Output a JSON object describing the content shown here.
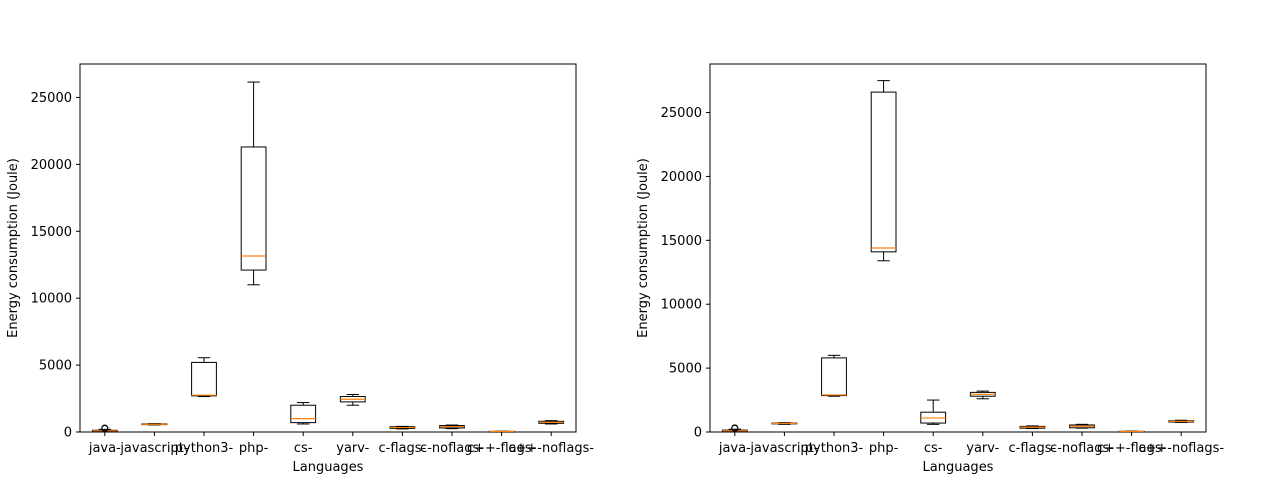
{
  "chart_data": [
    {
      "type": "box",
      "xlabel": "Languages",
      "ylabel": "Energy consumption (Joule)",
      "ylim": [
        0,
        27500
      ],
      "yticks": [
        0,
        5000,
        10000,
        15000,
        20000,
        25000
      ],
      "categories": [
        "java-",
        "javascript-",
        "python3-",
        "php-",
        "cs-",
        "yarv-",
        "c-flags-",
        "c-noflags-",
        "c++-flags-",
        "c++-noflags-"
      ],
      "boxes": [
        {
          "whislo": 30,
          "q1": 60,
          "med": 90,
          "q3": 130,
          "whishi": 200,
          "fliers": [
            260,
            300
          ]
        },
        {
          "whislo": 530,
          "q1": 550,
          "med": 580,
          "q3": 610,
          "whishi": 630,
          "fliers": []
        },
        {
          "whislo": 2650,
          "q1": 2700,
          "med": 2750,
          "q3": 5200,
          "whishi": 5550,
          "fliers": []
        },
        {
          "whislo": 11000,
          "q1": 12100,
          "med": 13150,
          "q3": 21300,
          "whishi": 26150,
          "fliers": []
        },
        {
          "whislo": 600,
          "q1": 700,
          "med": 1000,
          "q3": 2000,
          "whishi": 2200,
          "fliers": []
        },
        {
          "whislo": 2000,
          "q1": 2250,
          "med": 2450,
          "q3": 2650,
          "whishi": 2800,
          "fliers": []
        },
        {
          "whislo": 230,
          "q1": 270,
          "med": 330,
          "q3": 390,
          "whishi": 420,
          "fliers": []
        },
        {
          "whislo": 250,
          "q1": 300,
          "med": 400,
          "q3": 480,
          "whishi": 520,
          "fliers": []
        },
        {
          "whislo": 20,
          "q1": 30,
          "med": 40,
          "q3": 50,
          "whishi": 60,
          "fliers": []
        },
        {
          "whislo": 600,
          "q1": 650,
          "med": 720,
          "q3": 800,
          "whishi": 850,
          "fliers": []
        }
      ]
    },
    {
      "type": "box",
      "xlabel": "Languages",
      "ylabel": "Energy consumption (Joule)",
      "ylim": [
        0,
        28800
      ],
      "yticks": [
        0,
        5000,
        10000,
        15000,
        20000,
        25000
      ],
      "categories": [
        "java-",
        "javascript-",
        "python3-",
        "php-",
        "cs-",
        "yarv-",
        "c-flags-",
        "c-noflags-",
        "c++-flags-",
        "c++-noflags-"
      ],
      "boxes": [
        {
          "whislo": 40,
          "q1": 70,
          "med": 100,
          "q3": 150,
          "whishi": 220,
          "fliers": [
            280,
            320
          ]
        },
        {
          "whislo": 600,
          "q1": 640,
          "med": 670,
          "q3": 700,
          "whishi": 730,
          "fliers": []
        },
        {
          "whislo": 2800,
          "q1": 2850,
          "med": 2900,
          "q3": 5800,
          "whishi": 6000,
          "fliers": []
        },
        {
          "whislo": 13400,
          "q1": 14100,
          "med": 14400,
          "q3": 26600,
          "whishi": 27500,
          "fliers": []
        },
        {
          "whislo": 600,
          "q1": 700,
          "med": 1100,
          "q3": 1550,
          "whishi": 2500,
          "fliers": []
        },
        {
          "whislo": 2600,
          "q1": 2800,
          "med": 2950,
          "q3": 3100,
          "whishi": 3200,
          "fliers": []
        },
        {
          "whislo": 270,
          "q1": 300,
          "med": 380,
          "q3": 440,
          "whishi": 480,
          "fliers": []
        },
        {
          "whislo": 300,
          "q1": 330,
          "med": 450,
          "q3": 550,
          "whishi": 600,
          "fliers": []
        },
        {
          "whislo": 20,
          "q1": 30,
          "med": 40,
          "q3": 55,
          "whishi": 70,
          "fliers": []
        },
        {
          "whislo": 750,
          "q1": 780,
          "med": 830,
          "q3": 880,
          "whishi": 920,
          "fliers": []
        }
      ]
    }
  ],
  "style": {
    "box_edge": "#000000",
    "median": "#ff7f0e",
    "background": "#ffffff"
  }
}
